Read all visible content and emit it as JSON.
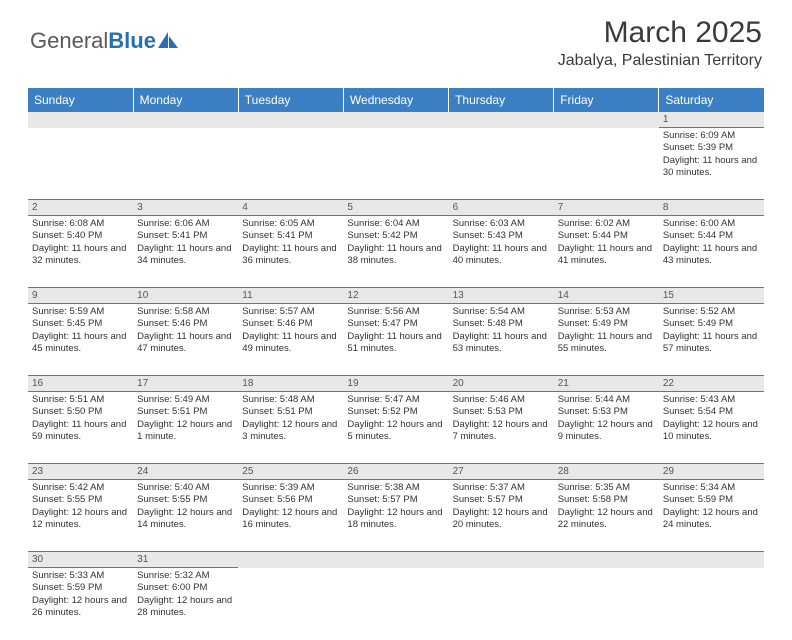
{
  "logo": {
    "part1": "General",
    "part2": "Blue"
  },
  "title": "March 2025",
  "subtitle": "Jabalya, Palestinian Territory",
  "colors": {
    "header_bg": "#3b7fc4",
    "header_fg": "#ffffff",
    "daynum_bg": "#e8e8e8",
    "text": "#333333",
    "logo_gray": "#5a5a5a",
    "logo_blue": "#2a6fb5"
  },
  "fonts": {
    "title_size": 30,
    "subtitle_size": 16,
    "dayhead_size": 12,
    "cell_size": 9.5
  },
  "dayheads": [
    "Sunday",
    "Monday",
    "Tuesday",
    "Wednesday",
    "Thursday",
    "Friday",
    "Saturday"
  ],
  "weeks": [
    [
      null,
      null,
      null,
      null,
      null,
      null,
      {
        "d": "1",
        "sr": "6:09 AM",
        "ss": "5:39 PM",
        "dl": "11 hours and 30 minutes."
      }
    ],
    [
      {
        "d": "2",
        "sr": "6:08 AM",
        "ss": "5:40 PM",
        "dl": "11 hours and 32 minutes."
      },
      {
        "d": "3",
        "sr": "6:06 AM",
        "ss": "5:41 PM",
        "dl": "11 hours and 34 minutes."
      },
      {
        "d": "4",
        "sr": "6:05 AM",
        "ss": "5:41 PM",
        "dl": "11 hours and 36 minutes."
      },
      {
        "d": "5",
        "sr": "6:04 AM",
        "ss": "5:42 PM",
        "dl": "11 hours and 38 minutes."
      },
      {
        "d": "6",
        "sr": "6:03 AM",
        "ss": "5:43 PM",
        "dl": "11 hours and 40 minutes."
      },
      {
        "d": "7",
        "sr": "6:02 AM",
        "ss": "5:44 PM",
        "dl": "11 hours and 41 minutes."
      },
      {
        "d": "8",
        "sr": "6:00 AM",
        "ss": "5:44 PM",
        "dl": "11 hours and 43 minutes."
      }
    ],
    [
      {
        "d": "9",
        "sr": "5:59 AM",
        "ss": "5:45 PM",
        "dl": "11 hours and 45 minutes."
      },
      {
        "d": "10",
        "sr": "5:58 AM",
        "ss": "5:46 PM",
        "dl": "11 hours and 47 minutes."
      },
      {
        "d": "11",
        "sr": "5:57 AM",
        "ss": "5:46 PM",
        "dl": "11 hours and 49 minutes."
      },
      {
        "d": "12",
        "sr": "5:56 AM",
        "ss": "5:47 PM",
        "dl": "11 hours and 51 minutes."
      },
      {
        "d": "13",
        "sr": "5:54 AM",
        "ss": "5:48 PM",
        "dl": "11 hours and 53 minutes."
      },
      {
        "d": "14",
        "sr": "5:53 AM",
        "ss": "5:49 PM",
        "dl": "11 hours and 55 minutes."
      },
      {
        "d": "15",
        "sr": "5:52 AM",
        "ss": "5:49 PM",
        "dl": "11 hours and 57 minutes."
      }
    ],
    [
      {
        "d": "16",
        "sr": "5:51 AM",
        "ss": "5:50 PM",
        "dl": "11 hours and 59 minutes."
      },
      {
        "d": "17",
        "sr": "5:49 AM",
        "ss": "5:51 PM",
        "dl": "12 hours and 1 minute."
      },
      {
        "d": "18",
        "sr": "5:48 AM",
        "ss": "5:51 PM",
        "dl": "12 hours and 3 minutes."
      },
      {
        "d": "19",
        "sr": "5:47 AM",
        "ss": "5:52 PM",
        "dl": "12 hours and 5 minutes."
      },
      {
        "d": "20",
        "sr": "5:46 AM",
        "ss": "5:53 PM",
        "dl": "12 hours and 7 minutes."
      },
      {
        "d": "21",
        "sr": "5:44 AM",
        "ss": "5:53 PM",
        "dl": "12 hours and 9 minutes."
      },
      {
        "d": "22",
        "sr": "5:43 AM",
        "ss": "5:54 PM",
        "dl": "12 hours and 10 minutes."
      }
    ],
    [
      {
        "d": "23",
        "sr": "5:42 AM",
        "ss": "5:55 PM",
        "dl": "12 hours and 12 minutes."
      },
      {
        "d": "24",
        "sr": "5:40 AM",
        "ss": "5:55 PM",
        "dl": "12 hours and 14 minutes."
      },
      {
        "d": "25",
        "sr": "5:39 AM",
        "ss": "5:56 PM",
        "dl": "12 hours and 16 minutes."
      },
      {
        "d": "26",
        "sr": "5:38 AM",
        "ss": "5:57 PM",
        "dl": "12 hours and 18 minutes."
      },
      {
        "d": "27",
        "sr": "5:37 AM",
        "ss": "5:57 PM",
        "dl": "12 hours and 20 minutes."
      },
      {
        "d": "28",
        "sr": "5:35 AM",
        "ss": "5:58 PM",
        "dl": "12 hours and 22 minutes."
      },
      {
        "d": "29",
        "sr": "5:34 AM",
        "ss": "5:59 PM",
        "dl": "12 hours and 24 minutes."
      }
    ],
    [
      {
        "d": "30",
        "sr": "5:33 AM",
        "ss": "5:59 PM",
        "dl": "12 hours and 26 minutes."
      },
      {
        "d": "31",
        "sr": "5:32 AM",
        "ss": "6:00 PM",
        "dl": "12 hours and 28 minutes."
      },
      null,
      null,
      null,
      null,
      null
    ]
  ],
  "labels": {
    "sunrise": "Sunrise: ",
    "sunset": "Sunset: ",
    "daylight": "Daylight: "
  }
}
